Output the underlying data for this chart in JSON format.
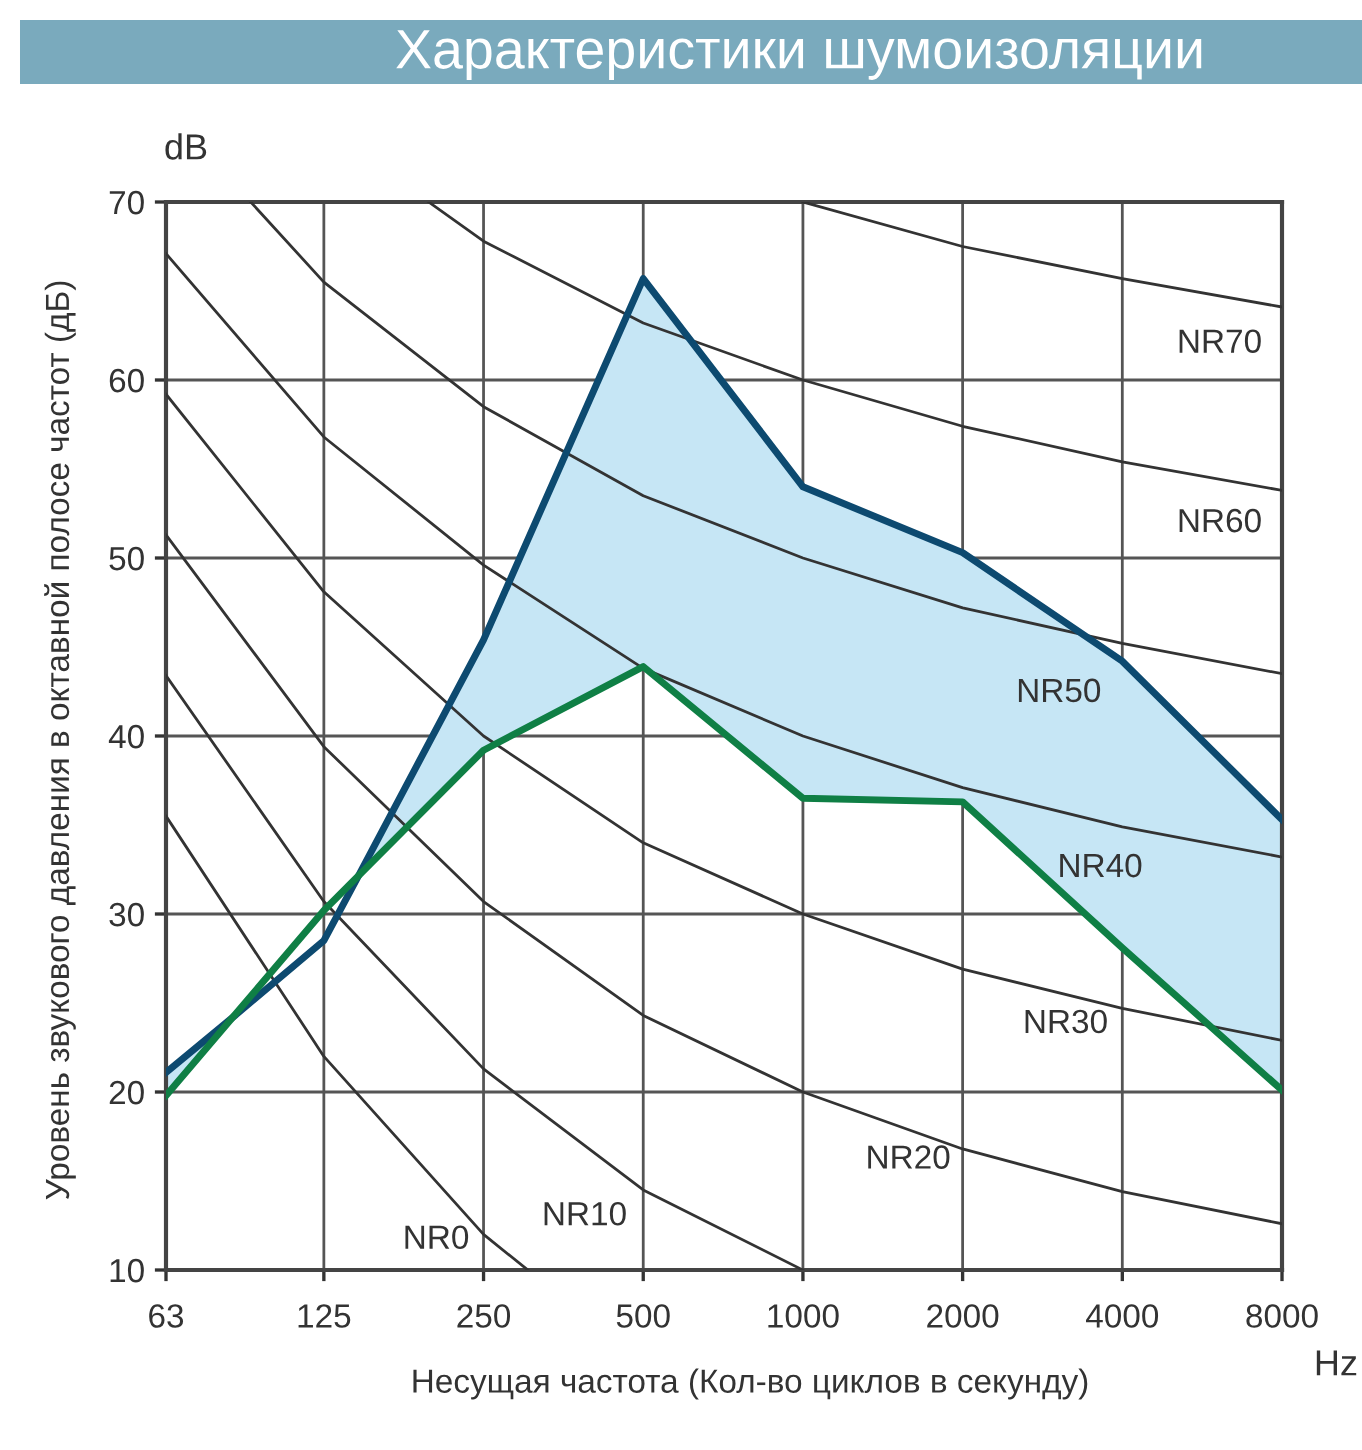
{
  "chart_data": {
    "type": "line",
    "title": "Характеристики шумоизоляции",
    "xlabel": "Несущая частота (Кол-во циклов в секунду)",
    "ylabel": "Уровень звукового давления в октавной полосе частот (дБ)",
    "annotations": [
      "dB",
      "Hz"
    ],
    "x": [
      63,
      125,
      250,
      500,
      1000,
      2000,
      4000,
      8000
    ],
    "log": "x",
    "xlim": [
      63,
      8000
    ],
    "xticks": [
      63,
      125,
      250,
      500,
      1000,
      2000,
      4000,
      8000
    ],
    "ylim": [
      10,
      70
    ],
    "yticks": [
      10,
      20,
      30,
      40,
      50,
      60,
      70
    ],
    "grid": true,
    "legend": false,
    "series": [
      {
        "color": "#0d4a70",
        "x": [
          63,
          85,
          125,
          145,
          250,
          500,
          1000,
          2000,
          4000,
          8000
        ],
        "values": [
          21.1,
          24.3,
          28.5,
          32.1,
          45.4,
          65.7,
          54,
          50.3,
          44.2,
          35.3
        ],
        "lower": [
          19.8,
          24.3,
          null,
          32.1,
          39.2,
          43.9,
          36.5,
          36.3,
          28.1,
          20.1
        ],
        "upper": [
          21.1,
          24.3,
          null,
          32.1,
          45.4,
          65.7,
          54,
          50.3,
          44.2,
          35.3
        ]
      },
      {
        "color": "#0f7f45",
        "values": [
          19.8,
          30.2,
          39.2,
          43.9,
          36.5,
          36.3,
          28.1,
          20.1
        ]
      },
      {
        "type": "line",
        "name": "NR0",
        "color": "#333333",
        "x": [
          63,
          125,
          250,
          303
        ],
        "values": [
          35.5,
          22,
          12,
          10
        ]
      },
      {
        "type": "line",
        "name": "NR10",
        "color": "#333333",
        "x": [
          63,
          125,
          250,
          500,
          1000
        ],
        "values": [
          43.4,
          30.7,
          21.3,
          14.5,
          10
        ]
      },
      {
        "type": "line",
        "name": "NR20",
        "color": "#333333",
        "x": [
          63,
          125,
          250,
          500,
          1000,
          2000,
          4000,
          8000
        ],
        "values": [
          51.3,
          39.4,
          30.7,
          24.3,
          20,
          16.8,
          14.4,
          12.6
        ]
      },
      {
        "type": "line",
        "name": "NR30",
        "color": "#333333",
        "x": [
          63,
          125,
          250,
          500,
          1000,
          2000,
          4000,
          8000
        ],
        "values": [
          59.2,
          48.1,
          40,
          34,
          30,
          26.9,
          24.7,
          22.9
        ]
      },
      {
        "type": "line",
        "name": "NR40",
        "color": "#333333",
        "x": [
          63,
          125,
          250,
          500,
          1000,
          2000,
          4000,
          8000
        ],
        "values": [
          67.1,
          56.8,
          49.6,
          43.8,
          40,
          37.1,
          34.9,
          33.2
        ]
      },
      {
        "type": "line",
        "name": "NR50",
        "color": "#333333",
        "x": [
          91,
          125,
          250,
          500,
          1000,
          2000,
          4000,
          8000
        ],
        "values": [
          70,
          65.5,
          58.5,
          53.5,
          50,
          47.2,
          45.2,
          43.5
        ]
      },
      {
        "type": "line",
        "name": "NR60",
        "color": "#333333",
        "x": [
          197,
          250,
          500,
          1000,
          2000,
          4000,
          8000
        ],
        "values": [
          70,
          67.8,
          63.2,
          60,
          57.4,
          55.4,
          53.8
        ]
      },
      {
        "type": "line",
        "name": "NR70",
        "color": "#333333",
        "x": [
          1000,
          2000,
          4000,
          8000
        ],
        "values": [
          70,
          67.5,
          65.7,
          64.1
        ]
      }
    ]
  }
}
